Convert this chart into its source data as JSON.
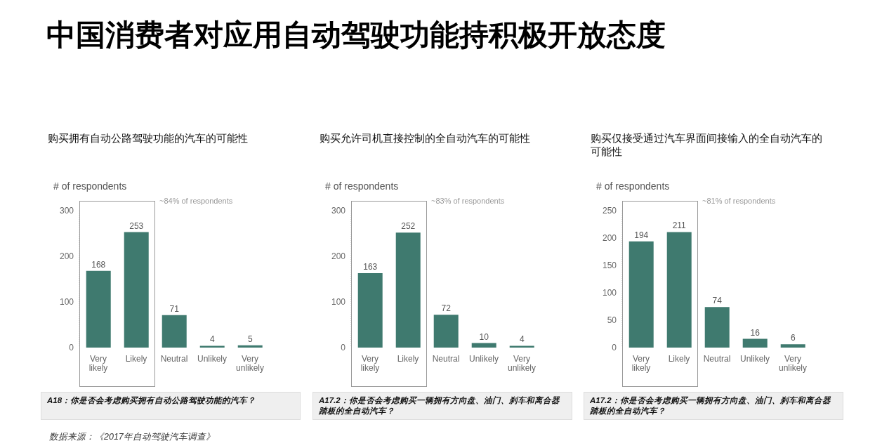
{
  "chart_data": [
    {
      "type": "bar",
      "title": "购买拥有自动公路驾驶功能的汽车的可能性",
      "ylabel": "# of respondents",
      "categories": [
        "Very likely",
        "Likely",
        "Neutral",
        "Unlikely",
        "Very unlikely"
      ],
      "values": [
        168,
        253,
        71,
        4,
        5
      ],
      "color": "#3f7a6f",
      "ylim": [
        0,
        300
      ],
      "yticks": [
        0,
        100,
        200,
        300
      ],
      "data_labels": true,
      "annotations": [
        "~84% of respondents",
        "A18：你是否会考虑购买拥有自动公路驾驶功能的汽车？"
      ]
    },
    {
      "type": "bar",
      "title": "购买允许司机直接控制的全自动汽车的可能性",
      "ylabel": "# of respondents",
      "categories": [
        "Very likely",
        "Likely",
        "Neutral",
        "Unlikely",
        "Very unlikely"
      ],
      "values": [
        163,
        252,
        72,
        10,
        4
      ],
      "color": "#3f7a6f",
      "ylim": [
        0,
        300
      ],
      "yticks": [
        0,
        100,
        200,
        300
      ],
      "data_labels": true,
      "annotations": [
        "~83% of respondents",
        "A17.2：你是否会考虑购买一辆拥有方向盘、油门、刹车和离合器踏板的全自动汽车？"
      ]
    },
    {
      "type": "bar",
      "title": "购买仅接受通过汽车界面间接输入的全自动汽车的可能性",
      "ylabel": "# of respondents",
      "categories": [
        "Very likely",
        "Likely",
        "Neutral",
        "Unlikely",
        "Very unlikely"
      ],
      "values": [
        194,
        211,
        74,
        16,
        6
      ],
      "color": "#3f7a6f",
      "ylim": [
        0,
        250
      ],
      "yticks": [
        0,
        50,
        100,
        150,
        200,
        250
      ],
      "data_labels": true,
      "annotations": [
        "~81% of respondents",
        "A17.2：你是否会考虑购买一辆拥有方向盘、油门、刹车和离合器踏板的全自动汽车？"
      ]
    },
    {
      "type": "other",
      "title": "中国消费者对应用自动驾驶功能持积极开放态度",
      "annotations": [
        "数据来源：《2017年自动驾驶汽车调查》"
      ]
    }
  ]
}
